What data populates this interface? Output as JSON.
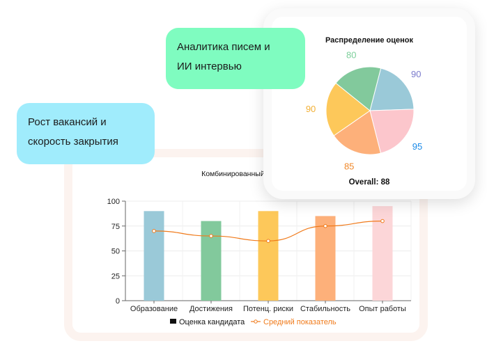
{
  "bubbles": {
    "analytics": [
      "Аналитика писем и",
      "ИИ интервью"
    ],
    "growth": [
      "Рост вакансий и",
      "скорость закрытия"
    ]
  },
  "combo_card": {
    "title": "Комбинированный анализ"
  },
  "pie_card": {
    "title": "Распределение оценок",
    "overall_label": "Overall: 88"
  },
  "chart_data": [
    {
      "type": "bar",
      "title": "Комбинированный анализ",
      "categories": [
        "Образование",
        "Достижения",
        "Потенц. риски",
        "Стабильность",
        "Опыт работы"
      ],
      "ylim": [
        0,
        100
      ],
      "yticks": [
        0,
        25,
        50,
        75,
        100
      ],
      "grid": true,
      "legend_position": "bottom",
      "series": [
        {
          "name": "Оценка кандидата",
          "kind": "bar",
          "values": [
            90,
            80,
            90,
            85,
            95
          ],
          "colors": [
            "#9ac9d8",
            "#82c99c",
            "#fdc85a",
            "#fdb07a",
            "#fcd6d8"
          ]
        },
        {
          "name": "Средний показатель",
          "kind": "line",
          "values": [
            70,
            65,
            60,
            75,
            80
          ],
          "color": "#f07a1a"
        }
      ]
    },
    {
      "type": "pie",
      "title": "Распределение оценок",
      "values": [
        90,
        95,
        85,
        90,
        80
      ],
      "colors": [
        "#9ac9d8",
        "#fcc6cc",
        "#fdb07a",
        "#fdc85a",
        "#82c99c"
      ],
      "label_colors": [
        "#7a7acc",
        "#1a8ae8",
        "#f0882a",
        "#f2b035",
        "#7ccf9a"
      ]
    }
  ]
}
